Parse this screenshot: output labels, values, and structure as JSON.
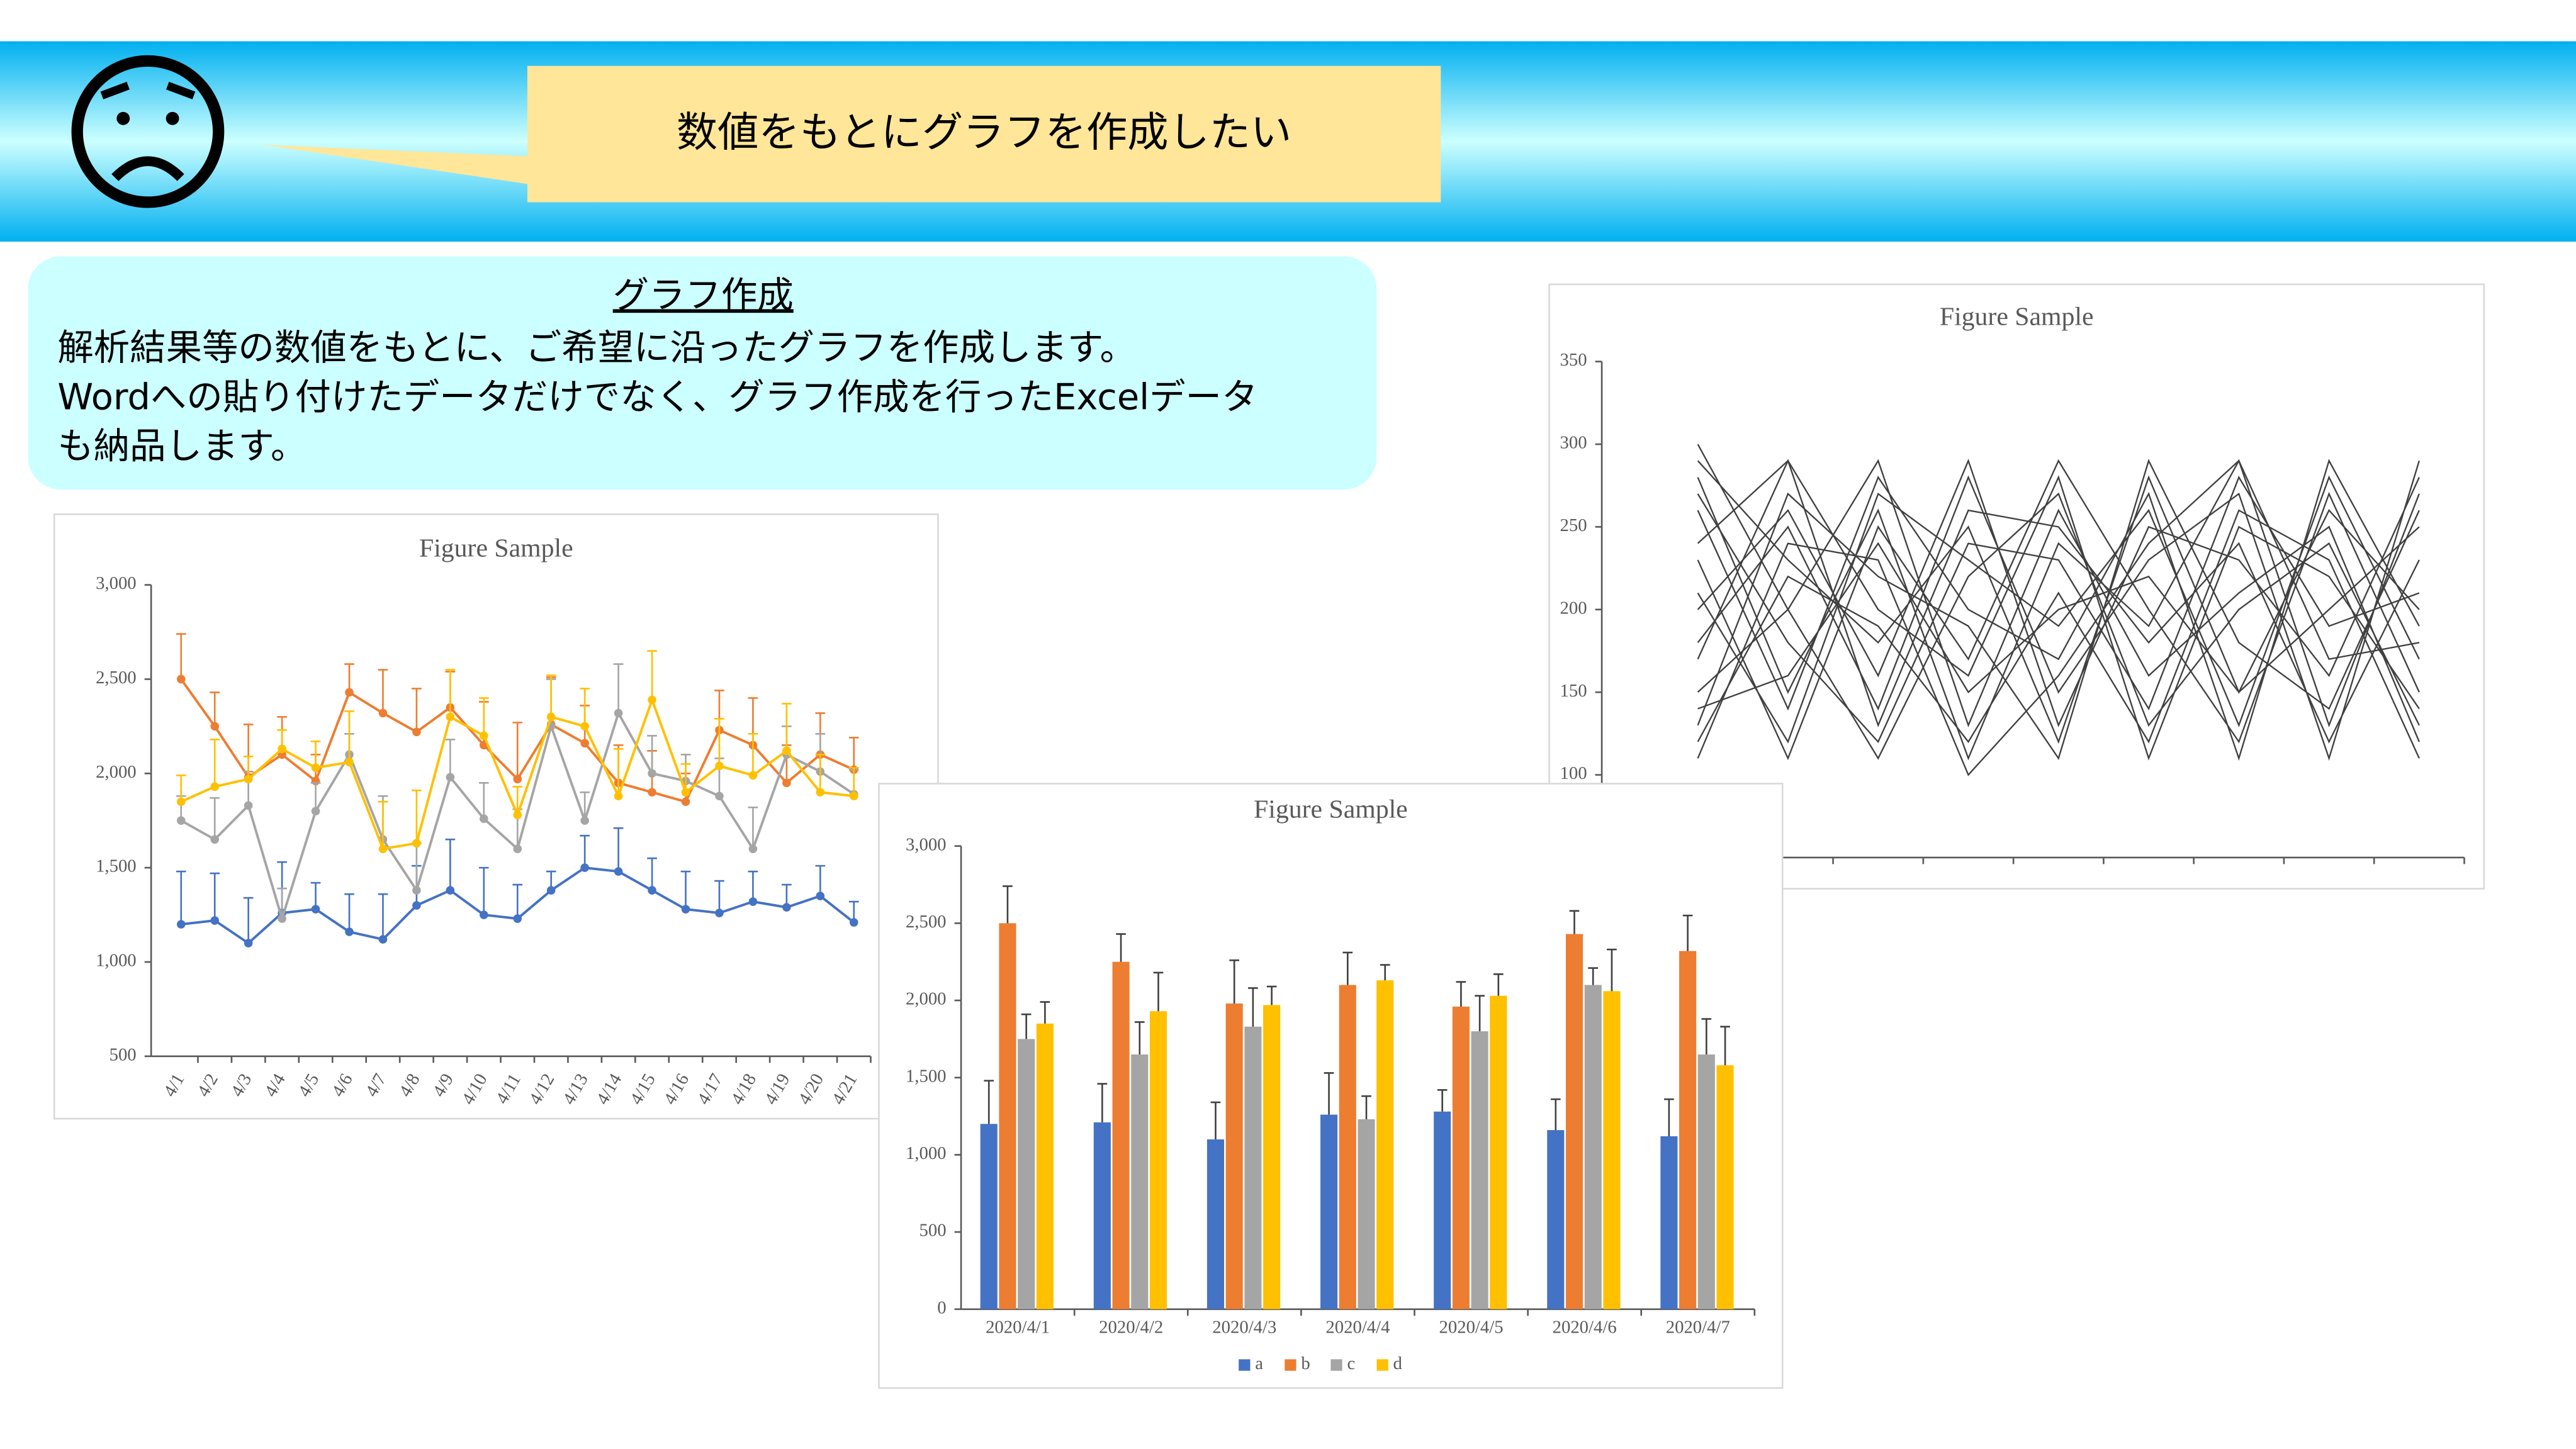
{
  "header": {
    "speech": "数値をもとにグラフを作成したい"
  },
  "info": {
    "title": "グラフ作成",
    "lines": [
      "解析結果等の数値をもとに、ご希望に沿ったグラフを作成します。",
      "Wordへの貼り付けたデータだけでなく、グラフ作成を行ったExcelデータ",
      "も納品します。"
    ]
  },
  "chart_data": [
    {
      "type": "line",
      "title": "Figure Sample",
      "markers": true,
      "categories": [
        "4/1",
        "4/2",
        "4/3",
        "4/4",
        "4/5",
        "4/6",
        "4/7",
        "4/8",
        "4/9",
        "4/10",
        "4/11",
        "4/12",
        "4/13",
        "4/14",
        "4/15",
        "4/16",
        "4/17",
        "4/18",
        "4/19",
        "4/20",
        "4/21"
      ],
      "ylim": [
        500,
        3000
      ],
      "yticks": [
        500,
        {
          "value": 1000,
          "label": "1,000"
        },
        {
          "value": 1500,
          "label": "1,500"
        },
        {
          "value": 2000,
          "label": "2,000"
        },
        {
          "value": 2500,
          "label": "2,500"
        },
        {
          "value": 3000,
          "label": "3,000"
        }
      ],
      "series": [
        {
          "color": "#4472c4",
          "values": [
            1200,
            1220,
            1100,
            1260,
            1280,
            1160,
            1120,
            1300,
            1380,
            1250,
            1230,
            1380,
            1500,
            1480,
            1380,
            1280,
            1260,
            1320,
            1290,
            1350,
            1210
          ],
          "errors": [
            280,
            250,
            240,
            270,
            140,
            200,
            240,
            210,
            270,
            250,
            180,
            100,
            170,
            230,
            170,
            200,
            170,
            160,
            120,
            160,
            110
          ]
        },
        {
          "color": "#ed7d31",
          "values": [
            2500,
            2250,
            1980,
            2100,
            1960,
            2430,
            2320,
            2220,
            2350,
            2150,
            1970,
            2260,
            2160,
            1950,
            1900,
            1850,
            2230,
            2150,
            1950,
            2100,
            2020
          ],
          "errors": [
            240,
            180,
            280,
            200,
            140,
            150,
            230,
            230,
            190,
            230,
            300,
            250,
            200,
            200,
            220,
            150,
            210,
            250,
            200,
            220,
            170
          ]
        },
        {
          "color": "#a5a5a5",
          "values": [
            1750,
            1650,
            1830,
            1230,
            1800,
            2100,
            1650,
            1380,
            1980,
            1760,
            1600,
            2250,
            1750,
            2320,
            2000,
            1960,
            1880,
            1600,
            2100,
            2010,
            1890
          ],
          "errors": [
            130,
            220,
            180,
            160,
            150,
            110,
            230,
            250,
            200,
            190,
            210,
            250,
            150,
            260,
            200,
            140,
            200,
            220,
            150,
            200,
            130
          ]
        },
        {
          "color": "#ffc000",
          "values": [
            1850,
            1930,
            1970,
            2130,
            2030,
            2060,
            1600,
            1630,
            2300,
            2200,
            1780,
            2300,
            2250,
            1880,
            2390,
            1900,
            2040,
            1990,
            2120,
            1900,
            1880
          ],
          "errors": [
            140,
            250,
            120,
            100,
            140,
            270,
            250,
            280,
            250,
            200,
            150,
            220,
            200,
            250,
            260,
            150,
            250,
            220,
            250,
            200,
            150
          ]
        }
      ]
    },
    {
      "type": "bar",
      "title": "Figure Sample",
      "legend": "bottom",
      "categories": [
        "2020/4/1",
        "2020/4/2",
        "2020/4/3",
        "2020/4/4",
        "2020/4/5",
        "2020/4/6",
        "2020/4/7"
      ],
      "ylim": [
        0,
        3000
      ],
      "yticks": [
        0,
        500,
        {
          "value": 1000,
          "label": "1,000"
        },
        {
          "value": 1500,
          "label": "1,500"
        },
        {
          "value": 2000,
          "label": "2,000"
        },
        {
          "value": 2500,
          "label": "2,500"
        },
        {
          "value": 3000,
          "label": "3,000"
        }
      ],
      "series": [
        {
          "name": "a",
          "color": "#4472c4",
          "values": [
            1200,
            1210,
            1100,
            1260,
            1280,
            1160,
            1120
          ],
          "errors": [
            280,
            250,
            240,
            270,
            140,
            200,
            240
          ]
        },
        {
          "name": "b",
          "color": "#ed7d31",
          "values": [
            2500,
            2250,
            1980,
            2100,
            1960,
            2430,
            2320
          ],
          "errors": [
            240,
            180,
            280,
            210,
            160,
            150,
            230
          ]
        },
        {
          "name": "c",
          "color": "#a5a5a5",
          "values": [
            1750,
            1650,
            1830,
            1230,
            1800,
            2100,
            1650
          ],
          "errors": [
            160,
            210,
            250,
            150,
            230,
            110,
            230
          ]
        },
        {
          "name": "d",
          "color": "#ffc000",
          "values": [
            1850,
            1930,
            1970,
            2130,
            2030,
            2060,
            1580
          ],
          "errors": [
            140,
            250,
            120,
            100,
            140,
            270,
            250
          ]
        }
      ]
    },
    {
      "type": "line",
      "title": "Figure Sample",
      "markers": false,
      "color": "#404040",
      "categories": [
        null,
        null,
        null,
        null,
        null,
        null,
        null,
        null,
        null
      ],
      "ylim": [
        50,
        350
      ],
      "yticks": [
        100,
        150,
        200,
        250,
        300,
        350
      ],
      "series": [
        {
          "values": [
            290,
            230,
            180,
            250,
            120,
            280,
            150,
            260,
            200
          ]
        },
        {
          "values": [
            280,
            150,
            260,
            110,
            240,
            190,
            290,
            130,
            270
          ]
        },
        {
          "values": [
            240,
            290,
            200,
            160,
            280,
            110,
            250,
            220,
            140
          ]
        },
        {
          "values": [
            210,
            120,
            270,
            230,
            190,
            260,
            130,
            280,
            170
          ]
        },
        {
          "values": [
            180,
            250,
            140,
            280,
            150,
            230,
            270,
            110,
            290
          ]
        },
        {
          "values": [
            150,
            200,
            290,
            130,
            260,
            160,
            210,
            250,
            120
          ]
        },
        {
          "values": [
            130,
            270,
            220,
            190,
            110,
            290,
            180,
            140,
            260
          ]
        },
        {
          "values": [
            270,
            180,
            120,
            240,
            230,
            140,
            280,
            190,
            210
          ]
        },
        {
          "values": [
            230,
            110,
            250,
            170,
            290,
            200,
            120,
            270,
            150
          ]
        },
        {
          "values": [
            200,
            260,
            160,
            290,
            130,
            250,
            230,
            160,
            280
          ]
        },
        {
          "values": [
            120,
            220,
            190,
            120,
            210,
            120,
            260,
            230,
            110
          ]
        },
        {
          "values": [
            260,
            140,
            280,
            200,
            170,
            270,
            110,
            290,
            190
          ]
        },
        {
          "values": [
            170,
            290,
            130,
            260,
            250,
            180,
            240,
            120,
            230
          ]
        },
        {
          "values": [
            140,
            160,
            240,
            150,
            200,
            220,
            150,
            200,
            250
          ]
        },
        {
          "values": [
            300,
            200,
            110,
            220,
            270,
            130,
            200,
            240,
            130
          ]
        },
        {
          "values": [
            110,
            240,
            230,
            100,
            160,
            240,
            290,
            170,
            180
          ]
        }
      ]
    }
  ]
}
